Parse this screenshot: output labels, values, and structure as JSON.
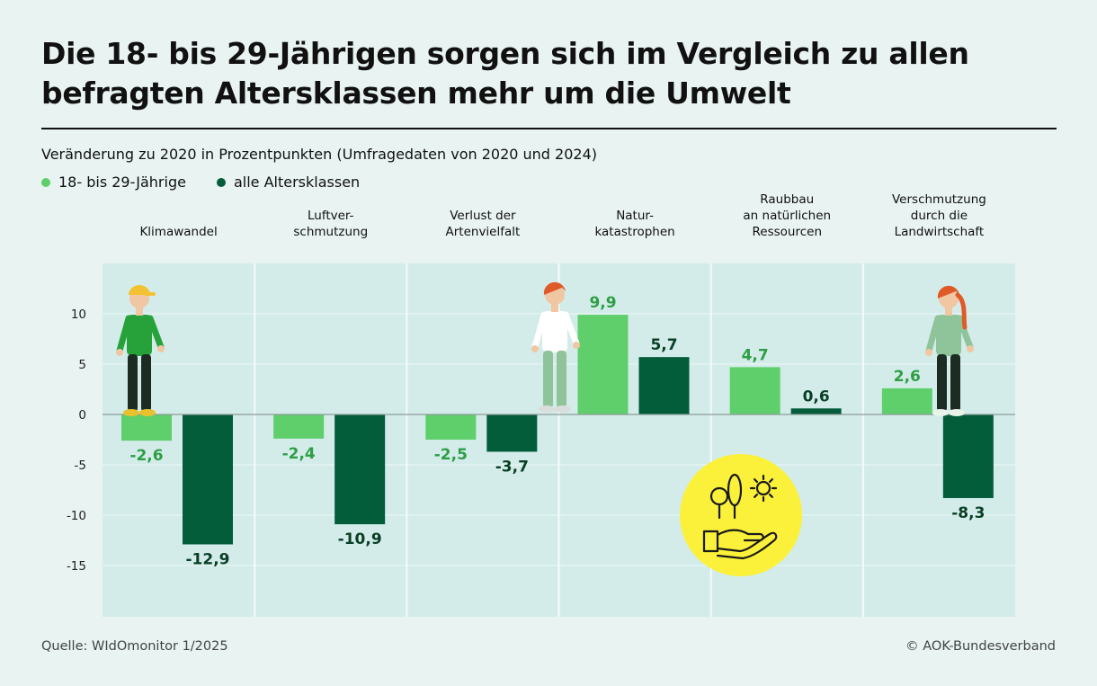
{
  "title": "Die 18- bis 29-Jährigen sorgen sich im Vergleich zu allen befragten Altersklassen mehr um die Umwelt",
  "subtitle": "Veränderung zu 2020 in Prozentpunkten (Umfragedaten von 2020 und 2024)",
  "source": "Quelle: WIdOmonitor 1/2025",
  "credit": "© AOK-Bundesverband",
  "colors": {
    "young": "#5ecf6b",
    "all": "#035c3a",
    "panel": "#d3ecea",
    "icon_yellow": "#fbf13a"
  },
  "chart_data": {
    "type": "bar",
    "title": "Die 18- bis 29-Jährigen sorgen sich im Vergleich zu allen befragten Altersklassen mehr um die Umwelt",
    "ylabel": "Veränderung zu 2020 in Prozentpunkten",
    "ylim": [
      -20,
      14
    ],
    "yticks": [
      10,
      5,
      0,
      -5,
      -10,
      -15
    ],
    "ytick_labels": [
      "10",
      "5",
      "0",
      "-5",
      "-10",
      "-15"
    ],
    "categories": [
      [
        "Klimawandel"
      ],
      [
        "Luftver-",
        "schmutzung"
      ],
      [
        "Verlust der",
        "Artenvielfalt"
      ],
      [
        "Natur-",
        "katastrophen"
      ],
      [
        "Raubbau",
        "an natürlichen",
        "Ressourcen"
      ],
      [
        "Verschmutzung",
        "durch die",
        "Landwirtschaft"
      ]
    ],
    "series": [
      {
        "name": "18- bis 29-Jährige",
        "values": [
          -2.6,
          -2.4,
          -2.5,
          9.9,
          4.7,
          2.6
        ],
        "labels": [
          "-2,6",
          "-2,4",
          "-2,5",
          "9,9",
          "4,7",
          "2,6"
        ]
      },
      {
        "name": "alle Altersklassen",
        "values": [
          -12.9,
          -10.9,
          -3.7,
          5.7,
          0.6,
          -8.3
        ],
        "labels": [
          "-12,9",
          "-10,9",
          "-3,7",
          "5,7",
          "0,6",
          "-8,3"
        ]
      }
    ],
    "legend": "top-left"
  }
}
